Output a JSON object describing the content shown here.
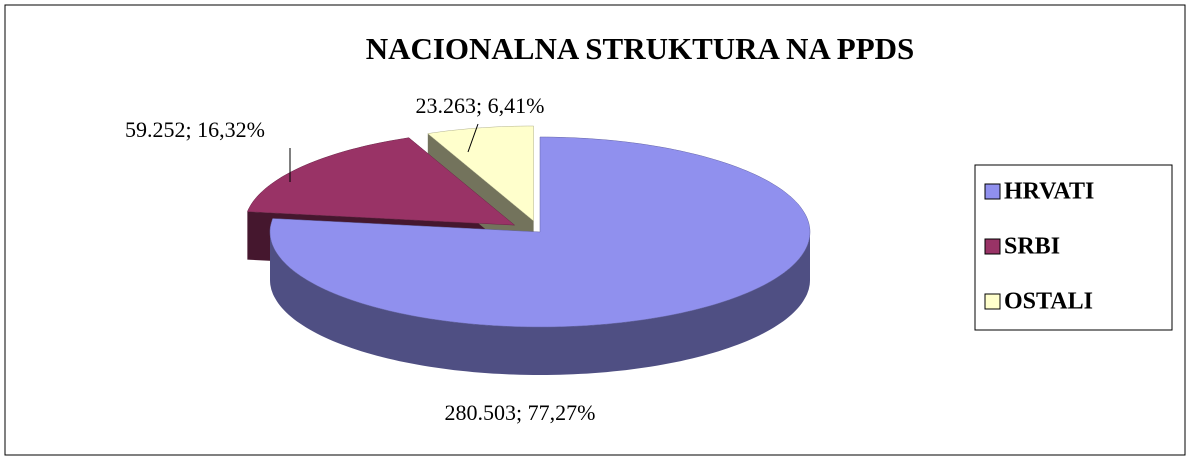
{
  "chart_data": {
    "type": "pie",
    "title": "NACIONALNA STRUKTURA NA PPDS",
    "categories": [
      "HRVATI",
      "SRBI",
      "OSTALI"
    ],
    "values": [
      280503,
      59252,
      23263
    ],
    "value_labels": [
      "280.503; 77,27%",
      "59.252; 16,32%",
      "23.263; 6,41%"
    ],
    "colors": [
      "#9090ee",
      "#993366",
      "#ffffcc"
    ],
    "legend": "right"
  }
}
